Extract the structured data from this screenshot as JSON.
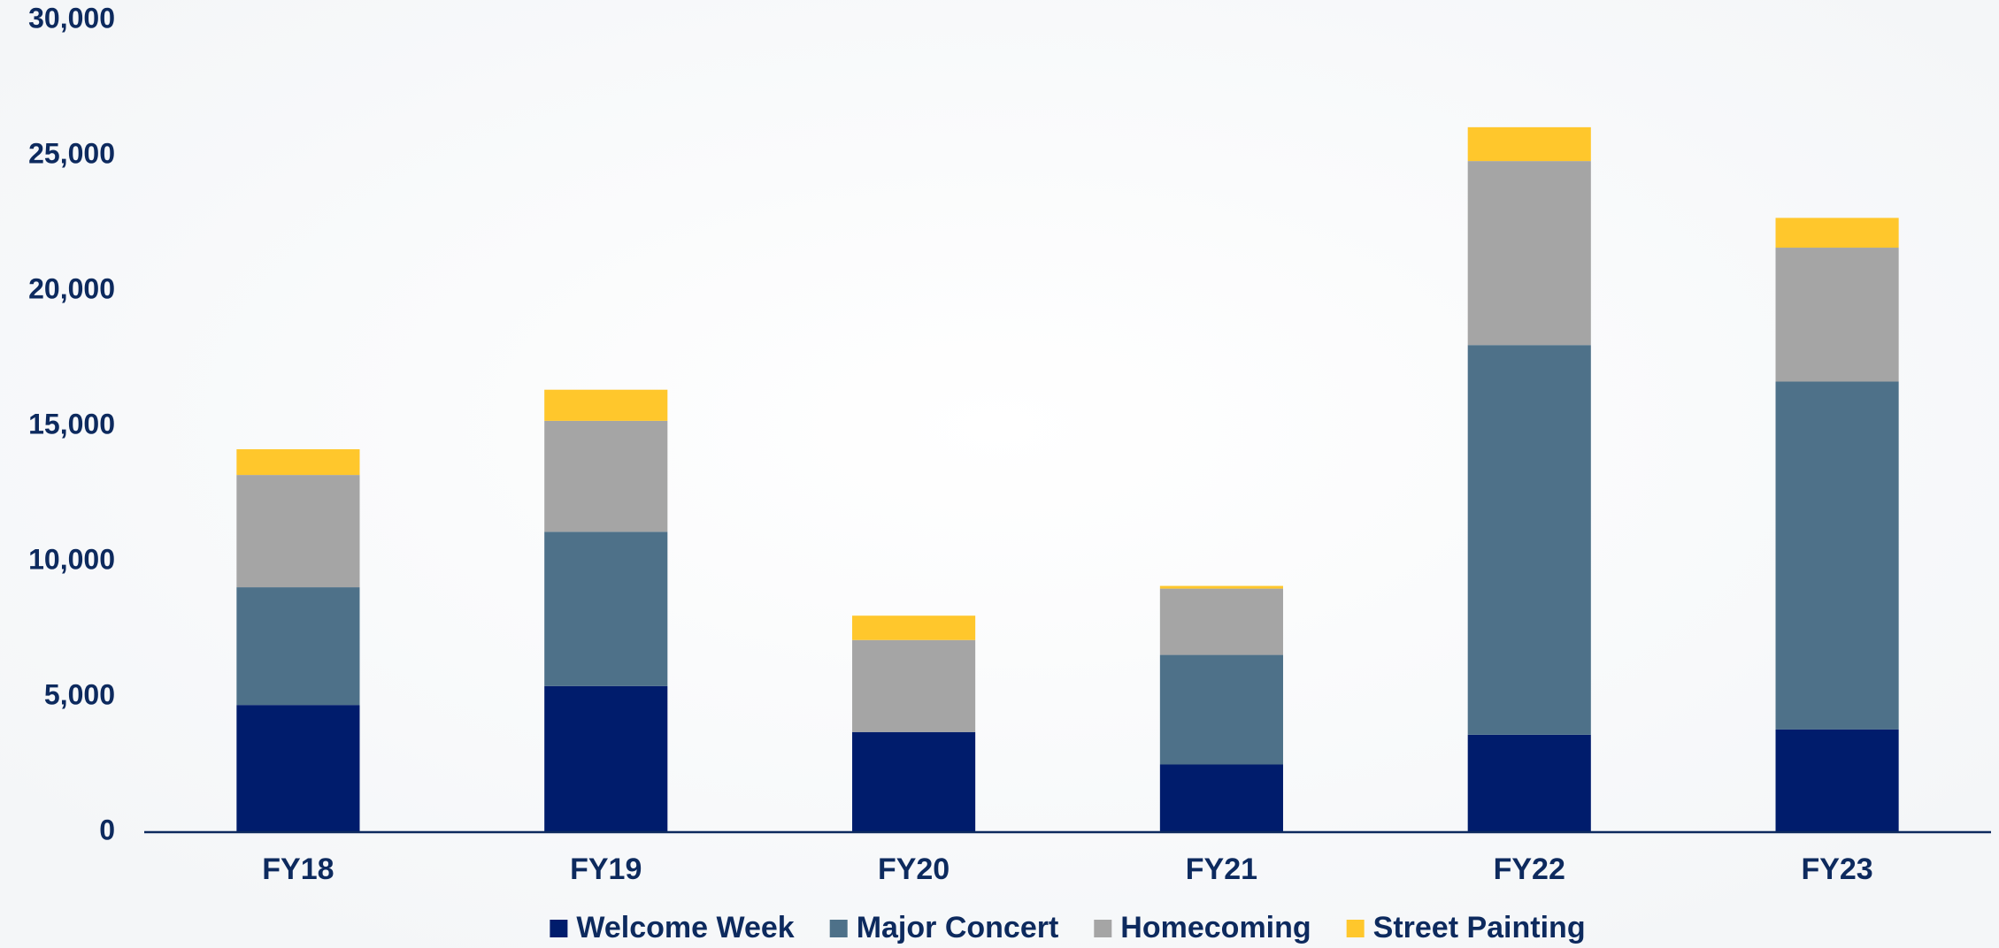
{
  "chart_data": {
    "type": "stacked_bar",
    "categories": [
      "FY18",
      "FY19",
      "FY20",
      "FY21",
      "FY22",
      "FY23"
    ],
    "series": [
      {
        "name": "Welcome Week",
        "color": "#001c6c",
        "values": [
          4700,
          5400,
          3700,
          2500,
          3600,
          3800
        ]
      },
      {
        "name": "Major Concert",
        "color": "#4e7189",
        "values": [
          4350,
          5700,
          0,
          4050,
          14400,
          12850
        ]
      },
      {
        "name": "Homecoming",
        "color": "#a5a5a5",
        "values": [
          4150,
          4100,
          3400,
          2450,
          6800,
          4950
        ]
      },
      {
        "name": "Street Painting",
        "color": "#ffc72c",
        "values": [
          950,
          1150,
          900,
          100,
          1250,
          1100
        ]
      }
    ],
    "ylim": [
      0,
      30000
    ],
    "yticks": [
      0,
      {
        "value": 5000,
        "label": "5,000"
      },
      {
        "value": 10000,
        "label": "10,000"
      },
      {
        "value": 15000,
        "label": "15,000"
      },
      {
        "value": 20000,
        "label": "20,000"
      },
      {
        "value": 25000,
        "label": "25,000"
      },
      {
        "value": 30000,
        "label": "30,000"
      }
    ],
    "legend": "bottom"
  }
}
